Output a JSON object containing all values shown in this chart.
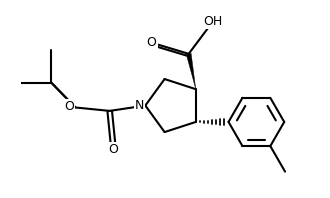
{
  "background_color": "#ffffff",
  "line_color": "#000000",
  "line_width": 1.5,
  "fig_width": 3.3,
  "fig_height": 1.98,
  "dpi": 100,
  "xlim": [
    -3.8,
    5.0
  ],
  "ylim": [
    -2.8,
    3.2
  ]
}
